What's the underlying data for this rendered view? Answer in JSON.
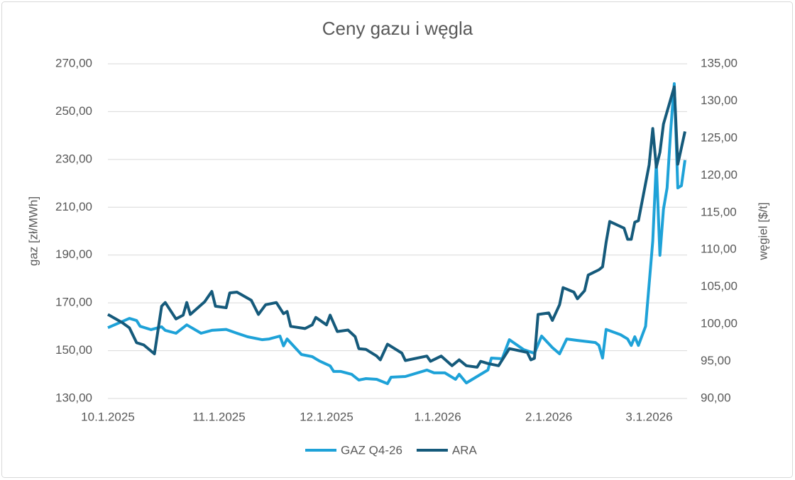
{
  "chart_data": {
    "type": "line",
    "title": "Ceny gazu i węgla",
    "y_label": "gaz [zł/MWh]",
    "y2_label": "węgiel [$/t]",
    "xlim": [
      "2025-10-01",
      "2026-03-11"
    ],
    "xticks": [
      {
        "value": "2025-10-01",
        "label": "10.1.2025"
      },
      {
        "value": "2025-11-01",
        "label": "11.1.2025"
      },
      {
        "value": "2025-12-01",
        "label": "12.1.2025"
      },
      {
        "value": "2026-01-01",
        "label": "1.1.2026"
      },
      {
        "value": "2026-02-01",
        "label": "2.1.2026"
      },
      {
        "value": "2026-03-01",
        "label": "3.1.2026"
      }
    ],
    "ylim": [
      130,
      270
    ],
    "yticks": [
      {
        "value": 130,
        "label": "130,00"
      },
      {
        "value": 150,
        "label": "150,00"
      },
      {
        "value": 170,
        "label": "170,00"
      },
      {
        "value": 190,
        "label": "190,00"
      },
      {
        "value": 210,
        "label": "210,00"
      },
      {
        "value": 230,
        "label": "230,00"
      },
      {
        "value": 250,
        "label": "250,00"
      },
      {
        "value": 270,
        "label": "270,00"
      }
    ],
    "y2lim": [
      90,
      135
    ],
    "y2ticks": [
      {
        "value": 90,
        "label": "90,00"
      },
      {
        "value": 95,
        "label": "95,00"
      },
      {
        "value": 100,
        "label": "100,00"
      },
      {
        "value": 105,
        "label": "105,00"
      },
      {
        "value": 110,
        "label": "110,00"
      },
      {
        "value": 115,
        "label": "115,00"
      },
      {
        "value": 120,
        "label": "120,00"
      },
      {
        "value": 125,
        "label": "125,00"
      },
      {
        "value": 130,
        "label": "130,00"
      },
      {
        "value": 135,
        "label": "135,00"
      }
    ],
    "grid": true,
    "legend": "bottom",
    "series": [
      {
        "name": "GAZ Q4-26",
        "color": "#1ea2d8",
        "axis": "y",
        "x": [
          "2025-10-01",
          "2025-10-07",
          "2025-10-09",
          "2025-10-10",
          "2025-10-13",
          "2025-10-16",
          "2025-10-17",
          "2025-10-20",
          "2025-10-23",
          "2025-10-27",
          "2025-10-30",
          "2025-11-03",
          "2025-11-06",
          "2025-11-09",
          "2025-11-13",
          "2025-11-15",
          "2025-11-18",
          "2025-11-19",
          "2025-11-20",
          "2025-11-24",
          "2025-11-27",
          "2025-11-29",
          "2025-12-02",
          "2025-12-03",
          "2025-12-05",
          "2025-12-08",
          "2025-12-10",
          "2025-12-12",
          "2025-12-15",
          "2025-12-18",
          "2025-12-19",
          "2025-12-23",
          "2025-12-29",
          "2025-12-31",
          "2026-01-03",
          "2026-01-06",
          "2026-01-07",
          "2026-01-09",
          "2026-01-12",
          "2026-01-15",
          "2026-01-16",
          "2026-01-19",
          "2026-01-21",
          "2026-01-25",
          "2026-01-28",
          "2026-01-30",
          "2026-02-02",
          "2026-02-04",
          "2026-02-06",
          "2026-02-09",
          "2026-02-14",
          "2026-02-15",
          "2026-02-16",
          "2026-02-17",
          "2026-02-21",
          "2026-02-23",
          "2026-02-24",
          "2026-02-25",
          "2026-02-26",
          "2026-02-28",
          "2026-03-02",
          "2026-03-03",
          "2026-03-04",
          "2026-03-05",
          "2026-03-06",
          "2026-03-07",
          "2026-03-08",
          "2026-03-09",
          "2026-03-10",
          "2026-03-11"
        ],
        "values": [
          159.6,
          163.5,
          162.6,
          160.2,
          158.8,
          160.0,
          158.5,
          157.3,
          160.8,
          157.3,
          158.5,
          158.9,
          157.3,
          155.8,
          154.6,
          154.9,
          156.1,
          152.0,
          154.9,
          148.4,
          147.5,
          145.7,
          143.6,
          141.3,
          141.3,
          140.1,
          137.7,
          138.3,
          138.0,
          136.2,
          138.9,
          139.2,
          141.9,
          140.7,
          140.7,
          138.0,
          140.1,
          136.5,
          139.2,
          141.9,
          146.9,
          146.6,
          154.6,
          150.4,
          148.9,
          156.1,
          151.3,
          148.7,
          154.9,
          154.3,
          153.4,
          152.2,
          146.9,
          158.9,
          156.7,
          154.9,
          152.2,
          155.8,
          152.2,
          160.2,
          195.8,
          228.5,
          189.9,
          209.2,
          218.1,
          241.8,
          261.7,
          218.1,
          219.0,
          229.7
        ]
      },
      {
        "name": "ARA",
        "color": "#155a7b",
        "axis": "y2",
        "x": [
          "2025-10-01",
          "2025-10-05",
          "2025-10-07",
          "2025-10-09",
          "2025-10-11",
          "2025-10-14",
          "2025-10-16",
          "2025-10-17",
          "2025-10-20",
          "2025-10-22",
          "2025-10-23",
          "2025-10-24",
          "2025-10-28",
          "2025-10-30",
          "2025-10-31",
          "2025-11-03",
          "2025-11-04",
          "2025-11-06",
          "2025-11-10",
          "2025-11-12",
          "2025-11-14",
          "2025-11-17",
          "2025-11-19",
          "2025-11-20",
          "2025-11-21",
          "2025-11-25",
          "2025-11-27",
          "2025-11-28",
          "2025-12-01",
          "2025-12-02",
          "2025-12-04",
          "2025-12-07",
          "2025-12-09",
          "2025-12-10",
          "2025-12-12",
          "2025-12-15",
          "2025-12-16",
          "2025-12-18",
          "2025-12-22",
          "2025-12-23",
          "2025-12-29",
          "2025-12-30",
          "2026-01-02",
          "2026-01-05",
          "2026-01-07",
          "2026-01-09",
          "2026-01-12",
          "2026-01-13",
          "2026-01-15",
          "2026-01-18",
          "2026-01-21",
          "2026-01-26",
          "2026-01-27",
          "2026-01-28",
          "2026-01-29",
          "2026-02-01",
          "2026-02-02",
          "2026-02-04",
          "2026-02-05",
          "2026-02-08",
          "2026-02-09",
          "2026-02-11",
          "2026-02-12",
          "2026-02-15",
          "2026-02-16",
          "2026-02-17",
          "2026-02-18",
          "2026-02-22",
          "2026-02-23",
          "2026-02-24",
          "2026-02-25",
          "2026-02-26",
          "2026-03-01",
          "2026-03-02",
          "2026-03-03",
          "2026-03-04",
          "2026-03-05",
          "2026-03-08",
          "2026-03-09",
          "2026-03-11"
        ],
        "values": [
          101.3,
          100.2,
          99.5,
          97.5,
          97.2,
          96.0,
          102.4,
          102.9,
          100.7,
          101.2,
          102.9,
          101.3,
          103.0,
          104.4,
          102.4,
          102.2,
          104.2,
          104.3,
          103.2,
          101.3,
          102.6,
          102.9,
          101.4,
          101.7,
          99.7,
          99.4,
          99.9,
          100.9,
          99.9,
          101.2,
          99.0,
          99.2,
          98.3,
          96.7,
          96.6,
          95.7,
          95.2,
          97.3,
          96.1,
          95.1,
          95.7,
          95.0,
          95.7,
          94.4,
          95.2,
          94.4,
          94.2,
          95.0,
          94.7,
          94.4,
          96.7,
          96.2,
          95.2,
          95.4,
          101.3,
          101.5,
          100.5,
          102.6,
          104.9,
          104.3,
          103.4,
          104.5,
          106.6,
          107.3,
          107.7,
          111.0,
          113.8,
          112.9,
          111.4,
          111.4,
          113.7,
          113.9,
          121.4,
          126.3,
          121.1,
          123.1,
          126.9,
          131.9,
          121.5,
          125.9
        ]
      }
    ]
  }
}
